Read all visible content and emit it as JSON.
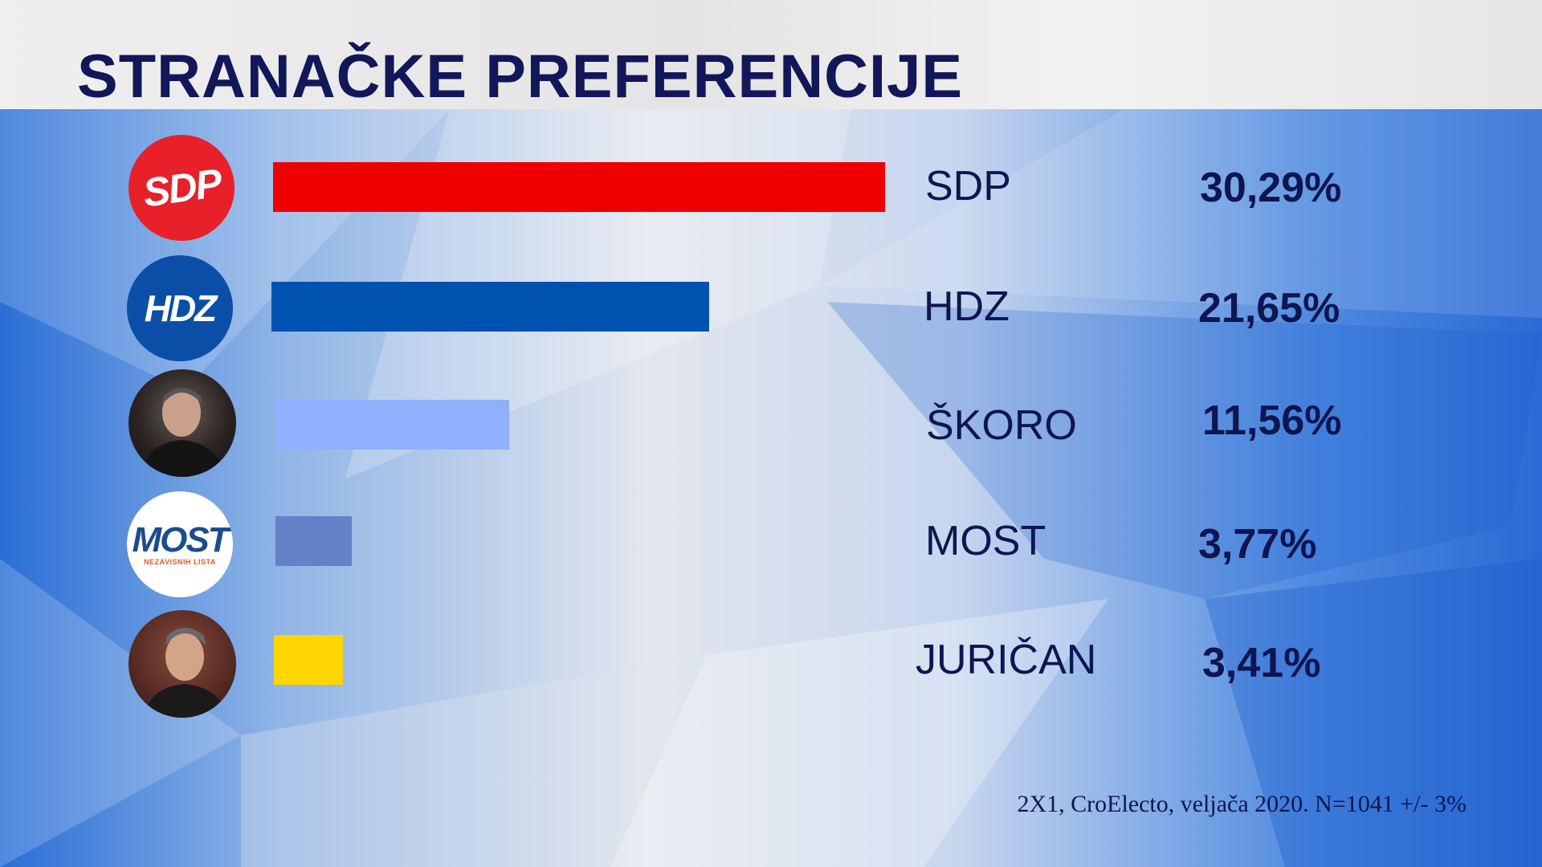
{
  "title": "STRANAČKE PREFERENCIJE",
  "source": "2X1, CroElecto, veljača 2020. N=1041 +/- 3%",
  "logos": {
    "sdp": "SDP",
    "hdz": "HDZ",
    "most": "MOST",
    "most_sub": "NEZAVISNIH LISTA"
  },
  "chart_data": {
    "type": "bar",
    "orientation": "horizontal",
    "title": "STRANAČKE PREFERENCIJE",
    "categories": [
      "SDP",
      "HDZ",
      "ŠKORO",
      "MOST",
      "JURIČAN"
    ],
    "values": [
      30.29,
      21.65,
      11.56,
      3.77,
      3.41
    ],
    "value_labels": [
      "30,29%",
      "21,65%",
      "11,56%",
      "3,77%",
      "3,41%"
    ],
    "colors": [
      "#ee0000",
      "#0052b0",
      "#8fb0ff",
      "#6680c8",
      "#ffd500"
    ],
    "icons": [
      "sdp-logo",
      "hdz-logo",
      "skoro-photo",
      "most-logo",
      "jurican-photo"
    ]
  }
}
